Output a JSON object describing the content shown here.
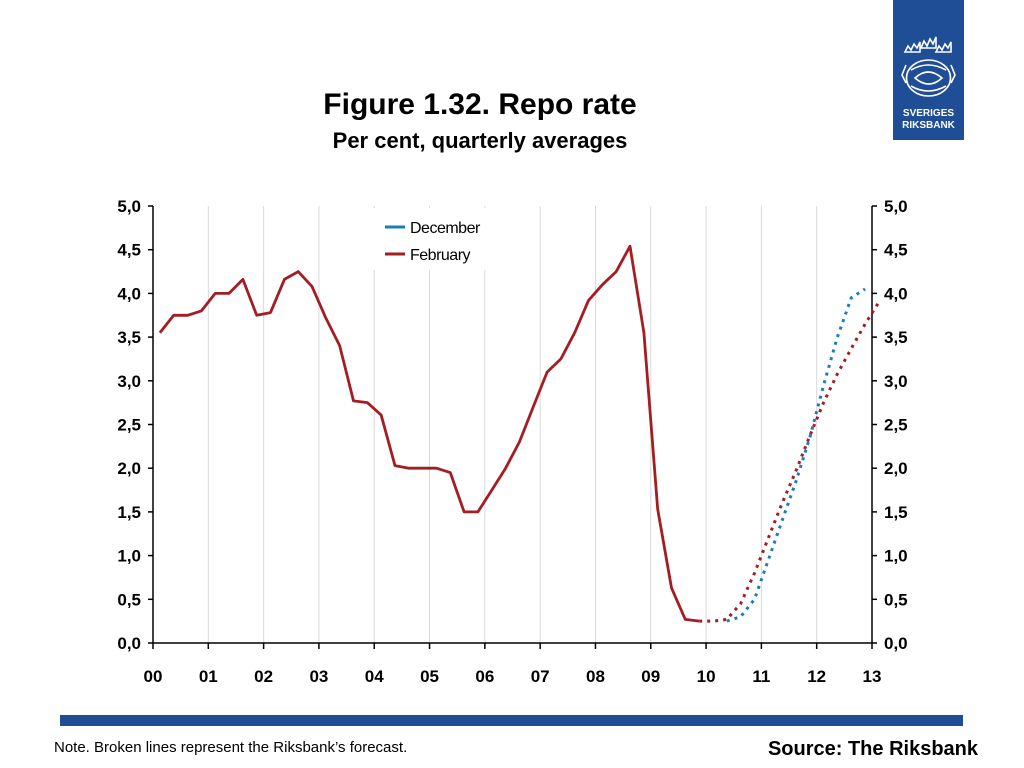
{
  "header": {
    "title": "Figure 1.32. Repo rate",
    "subtitle": "Per cent, quarterly averages"
  },
  "logo": {
    "line1": "SVERIGES",
    "line2": "RIKSBANK",
    "icon": "riksbank-crown-emblem-icon"
  },
  "footer": {
    "note": "Note. Broken lines represent the Riksbank’s forecast.",
    "source": "Source: The Riksbank"
  },
  "colors": {
    "brand_blue": "#1f4e96",
    "december": "#1a7dc2",
    "february": "#a31d22"
  },
  "chart_data": {
    "type": "line",
    "title": "Figure 1.32. Repo rate",
    "subtitle": "Per cent, quarterly averages",
    "x_tick_labels": [
      "00",
      "01",
      "02",
      "03",
      "04",
      "05",
      "06",
      "07",
      "08",
      "09",
      "10",
      "11",
      "12",
      "13"
    ],
    "y_tick_labels": [
      "0,0",
      "0,5",
      "1,0",
      "1,5",
      "2,0",
      "2,5",
      "3,0",
      "3,5",
      "4,0",
      "4,5",
      "5,0"
    ],
    "ylim": [
      0,
      5
    ],
    "xlim": [
      2000.0,
      2013.0
    ],
    "grid": "vertical",
    "legend": {
      "placement": "top-center",
      "entries": [
        "December",
        "February"
      ]
    },
    "series": [
      {
        "name": "February",
        "color": "#a31d22",
        "style": "solid",
        "points": [
          [
            2000.125,
            3.55
          ],
          [
            2000.375,
            3.75
          ],
          [
            2000.625,
            3.75
          ],
          [
            2000.875,
            3.8
          ],
          [
            2001.125,
            4.0
          ],
          [
            2001.375,
            4.0
          ],
          [
            2001.625,
            4.16
          ],
          [
            2001.875,
            3.75
          ],
          [
            2002.125,
            3.78
          ],
          [
            2002.375,
            4.16
          ],
          [
            2002.625,
            4.25
          ],
          [
            2002.875,
            4.08
          ],
          [
            2003.125,
            3.72
          ],
          [
            2003.375,
            3.4
          ],
          [
            2003.625,
            2.77
          ],
          [
            2003.875,
            2.75
          ],
          [
            2004.125,
            2.61
          ],
          [
            2004.375,
            2.03
          ],
          [
            2004.625,
            2.0
          ],
          [
            2004.875,
            2.0
          ],
          [
            2005.125,
            2.0
          ],
          [
            2005.375,
            1.95
          ],
          [
            2005.625,
            1.5
          ],
          [
            2005.875,
            1.5
          ],
          [
            2006.125,
            1.75
          ],
          [
            2006.375,
            2.0
          ],
          [
            2006.625,
            2.3
          ],
          [
            2006.875,
            2.7
          ],
          [
            2007.125,
            3.1
          ],
          [
            2007.375,
            3.25
          ],
          [
            2007.625,
            3.55
          ],
          [
            2007.875,
            3.92
          ],
          [
            2008.125,
            4.1
          ],
          [
            2008.375,
            4.25
          ],
          [
            2008.625,
            4.54
          ],
          [
            2008.875,
            3.55
          ],
          [
            2009.125,
            1.53
          ],
          [
            2009.375,
            0.63
          ],
          [
            2009.625,
            0.27
          ],
          [
            2009.875,
            0.25
          ]
        ]
      },
      {
        "name": "February forecast",
        "color": "#a31d22",
        "style": "dotted",
        "points": [
          [
            2009.875,
            0.25
          ],
          [
            2010.125,
            0.25
          ],
          [
            2010.375,
            0.27
          ],
          [
            2010.625,
            0.45
          ],
          [
            2010.875,
            0.8
          ],
          [
            2011.125,
            1.2
          ],
          [
            2011.375,
            1.6
          ],
          [
            2011.625,
            1.97
          ],
          [
            2011.875,
            2.37
          ],
          [
            2012.125,
            2.75
          ],
          [
            2012.375,
            3.08
          ],
          [
            2012.625,
            3.37
          ],
          [
            2012.875,
            3.65
          ],
          [
            2013.125,
            3.9
          ]
        ]
      },
      {
        "name": "December forecast",
        "color": "#1a7dc2",
        "style": "dotted",
        "points": [
          [
            2010.375,
            0.25
          ],
          [
            2010.625,
            0.3
          ],
          [
            2010.875,
            0.5
          ],
          [
            2011.125,
            0.95
          ],
          [
            2011.375,
            1.4
          ],
          [
            2011.625,
            1.85
          ],
          [
            2011.875,
            2.35
          ],
          [
            2012.125,
            2.95
          ],
          [
            2012.375,
            3.5
          ],
          [
            2012.625,
            3.95
          ],
          [
            2012.875,
            4.05
          ]
        ]
      }
    ]
  }
}
